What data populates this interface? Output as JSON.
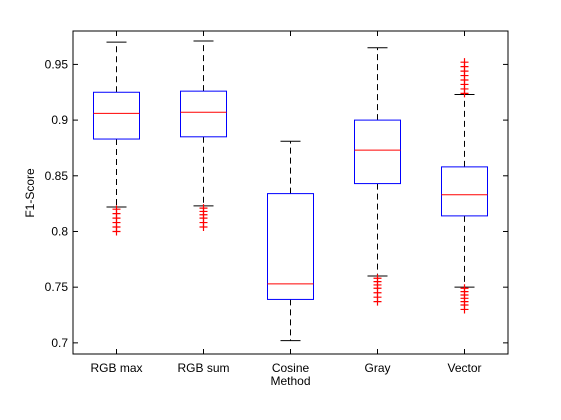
{
  "chart_data": {
    "type": "box",
    "title": "",
    "xlabel": "",
    "ylabel": "F1-Score",
    "ylim": [
      0.69,
      0.98
    ],
    "yticks": [
      0.7,
      0.75,
      0.8,
      0.85,
      0.9,
      0.95
    ],
    "ytick_labels": [
      "0.7",
      "0.75",
      "0.8",
      "0.85",
      "0.9",
      "0.95"
    ],
    "categories": [
      [
        "RGB max"
      ],
      [
        "RGB sum"
      ],
      [
        "Cosine",
        "Method"
      ],
      [
        "Gray"
      ],
      [
        "Vector"
      ]
    ],
    "boxes": [
      {
        "whisker_low": 0.822,
        "q1": 0.883,
        "median": 0.906,
        "q3": 0.925,
        "whisker_high": 0.97,
        "outliers_low": [
          0.8,
          0.804,
          0.808,
          0.812,
          0.816,
          0.82
        ],
        "outliers_high": []
      },
      {
        "whisker_low": 0.823,
        "q1": 0.885,
        "median": 0.907,
        "q3": 0.926,
        "whisker_high": 0.971,
        "outliers_low": [
          0.804,
          0.808,
          0.812,
          0.815,
          0.818,
          0.821
        ],
        "outliers_high": []
      },
      {
        "whisker_low": 0.702,
        "q1": 0.739,
        "median": 0.753,
        "q3": 0.834,
        "whisker_high": 0.881,
        "outliers_low": [],
        "outliers_high": []
      },
      {
        "whisker_low": 0.76,
        "q1": 0.843,
        "median": 0.873,
        "q3": 0.9,
        "whisker_high": 0.965,
        "outliers_low": [
          0.737,
          0.741,
          0.745,
          0.749,
          0.752,
          0.755,
          0.758
        ],
        "outliers_high": []
      },
      {
        "whisker_low": 0.75,
        "q1": 0.814,
        "median": 0.833,
        "q3": 0.858,
        "whisker_high": 0.923,
        "outliers_low": [
          0.73,
          0.734,
          0.737,
          0.74,
          0.743,
          0.746,
          0.749
        ],
        "outliers_high": [
          0.924,
          0.928,
          0.932,
          0.936,
          0.94,
          0.944,
          0.948,
          0.952
        ]
      }
    ],
    "colors": {
      "box": "#0000ff",
      "median": "#ff0000",
      "whisker": "#000000",
      "outlier": "#ff0000"
    },
    "grid": false
  }
}
